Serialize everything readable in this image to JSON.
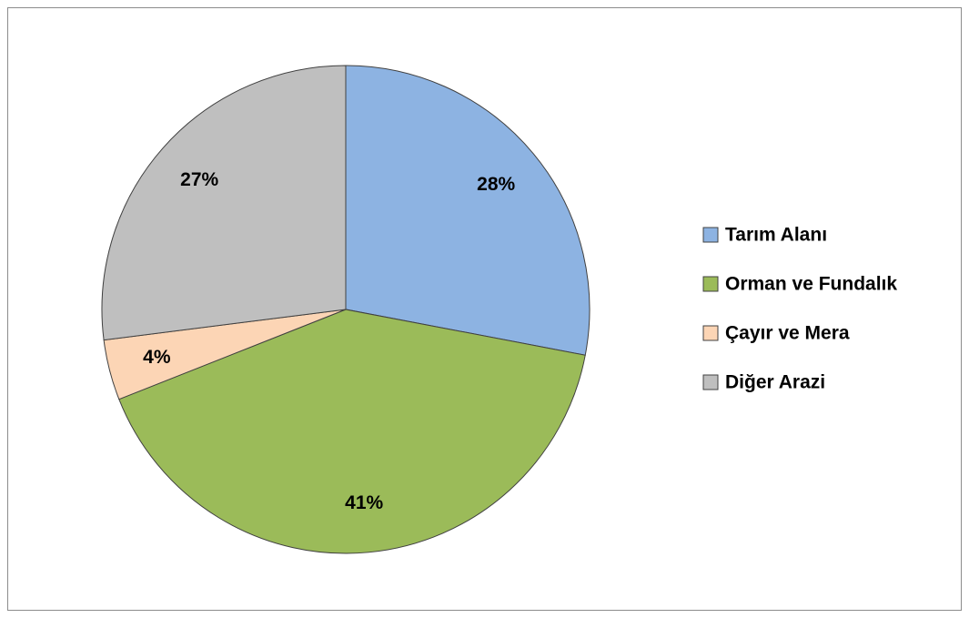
{
  "chart_data": {
    "type": "pie",
    "categories": [
      "Tarım Alanı",
      "Orman ve Fundalık",
      "Çayır ve Mera",
      "Diğer Arazi"
    ],
    "values": [
      28,
      41,
      4,
      27
    ],
    "value_labels": [
      "28%",
      "41%",
      "4%",
      "27%"
    ],
    "colors": [
      "#8db3e2",
      "#9bbb59",
      "#fcd5b5",
      "#bfbfbf"
    ],
    "legend": "right"
  }
}
